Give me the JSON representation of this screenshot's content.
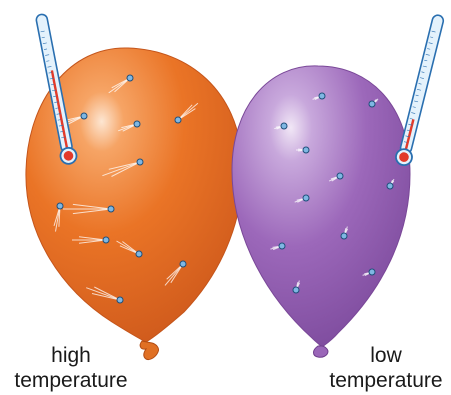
{
  "labels": {
    "high": {
      "line1": "high",
      "line2": "temperature"
    },
    "low": {
      "line1": "low",
      "line2": "temperature"
    }
  },
  "colors": {
    "hot_balloon": "#e86e1f",
    "hot_balloon_light": "#f4a262",
    "hot_balloon_dark": "#c9561a",
    "cold_balloon": "#9a66b8",
    "cold_balloon_light": "#cdb2de",
    "cold_balloon_dark": "#7e4c9e",
    "thermometer_glass": "#d8ecfa",
    "thermometer_outline": "#2a6fb0",
    "thermometer_liquid": "#e23a2a",
    "particle": "#7fb7e3",
    "particle_outline": "#1f4f7a",
    "motion_streak": "#ffffff",
    "label_text": "#1a1a1a"
  },
  "icons": {
    "left_thermometer": "thermometer-icon",
    "right_thermometer": "thermometer-icon",
    "particle": "gas-particle-icon"
  }
}
